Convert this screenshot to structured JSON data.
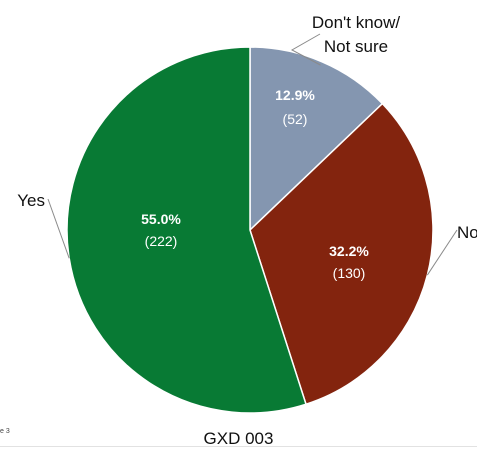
{
  "page_label": "e 3",
  "caption": "GXD 003",
  "chart_data": {
    "type": "pie",
    "title": "",
    "slices": [
      {
        "label": "Don't know/ Not sure",
        "label_lines": [
          "Don't know/",
          "Not sure"
        ],
        "percent_label": "12.9%",
        "count_label": "(52)",
        "value": 52,
        "color": "#8496b0"
      },
      {
        "label": "No",
        "label_lines": [
          "No"
        ],
        "percent_label": "32.2%",
        "count_label": "(130)",
        "value": 130,
        "color": "#83240e"
      },
      {
        "label": "Yes",
        "label_lines": [
          "Yes"
        ],
        "percent_label": "55.0%",
        "count_label": "(222)",
        "value": 222,
        "color": "#087a34"
      }
    ],
    "start_angle": "12 o'clock",
    "direction": "clockwise",
    "legend": "none"
  }
}
